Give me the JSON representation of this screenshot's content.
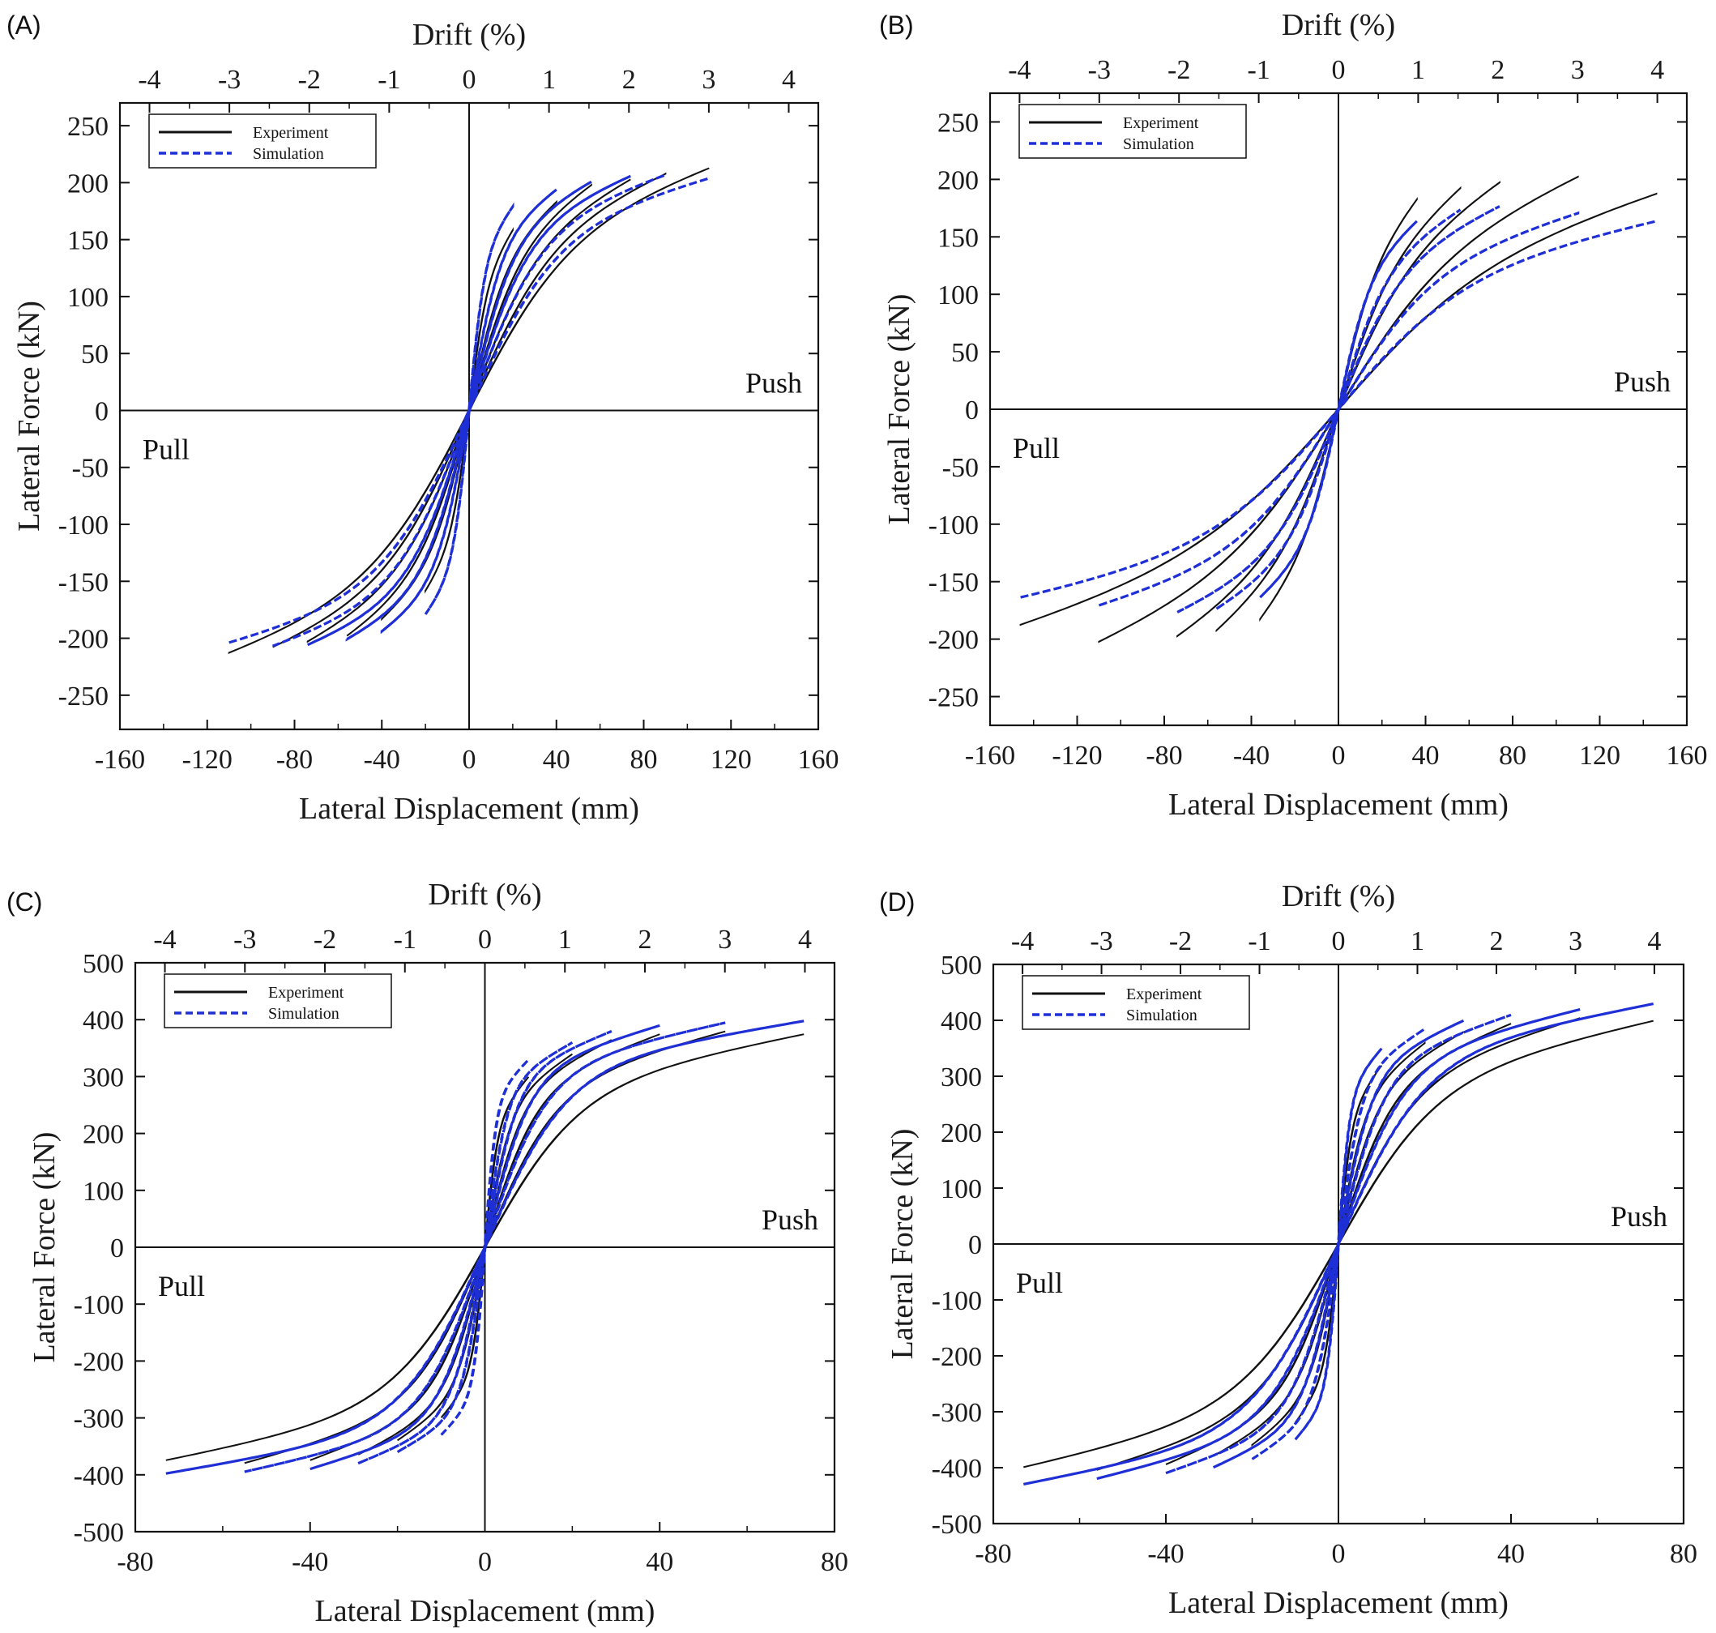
{
  "figure": {
    "panels": [
      {
        "label": "(A)",
        "top_axis_title": "Drift (%)",
        "xlabel": "Lateral Displacement (mm)",
        "ylabel": "Lateral Force (kN)",
        "xticks": [
          "-160",
          "-120",
          "-80",
          "-40",
          "0",
          "40",
          "80",
          "120",
          "160"
        ],
        "yticks": [
          "250",
          "200",
          "150",
          "100",
          "50",
          "0",
          "-50",
          "-100",
          "-150",
          "-200",
          "-250"
        ],
        "drift_ticks": [
          "-4",
          "-3",
          "-2",
          "-1",
          "0",
          "1",
          "2",
          "3",
          "4"
        ],
        "legend": [
          "Experiment",
          "Simulation"
        ],
        "push_label": "Push",
        "pull_label": "Pull"
      },
      {
        "label": "(B)",
        "top_axis_title": "Drift (%)",
        "xlabel": "Lateral Displacement (mm)",
        "ylabel": "Lateral Force (kN)",
        "xticks": [
          "-160",
          "-120",
          "-80",
          "-40",
          "0",
          "40",
          "80",
          "120",
          "160"
        ],
        "yticks": [
          "250",
          "200",
          "150",
          "100",
          "50",
          "0",
          "-50",
          "-100",
          "-150",
          "-200",
          "-250"
        ],
        "drift_ticks": [
          "-4",
          "-3",
          "-2",
          "-1",
          "0",
          "1",
          "2",
          "3",
          "4"
        ],
        "legend": [
          "Experiment",
          "Simulation"
        ],
        "push_label": "Push",
        "pull_label": "Pull"
      },
      {
        "label": "(C)",
        "top_axis_title": "Drift (%)",
        "xlabel": "Lateral Displacement (mm)",
        "ylabel": "Lateral Force (kN)",
        "xticks": [
          "-80",
          "-40",
          "0",
          "40",
          "80"
        ],
        "yticks": [
          "500",
          "400",
          "300",
          "200",
          "100",
          "0",
          "-100",
          "-200",
          "-300",
          "-400",
          "-500"
        ],
        "drift_ticks": [
          "-4",
          "-3",
          "-2",
          "-1",
          "0",
          "1",
          "2",
          "3",
          "4"
        ],
        "legend": [
          "Experiment",
          "Simulation"
        ],
        "push_label": "Push",
        "pull_label": "Pull"
      },
      {
        "label": "(D)",
        "top_axis_title": "Drift (%)",
        "xlabel": "Lateral Displacement (mm)",
        "ylabel": "Lateral Force (kN)",
        "xticks": [
          "-80",
          "-40",
          "0",
          "40",
          "80"
        ],
        "yticks": [
          "500",
          "400",
          "300",
          "200",
          "100",
          "0",
          "-100",
          "-200",
          "-300",
          "-400",
          "-500"
        ],
        "drift_ticks": [
          "-4",
          "-3",
          "-2",
          "-1",
          "0",
          "1",
          "2",
          "3",
          "4"
        ],
        "legend": [
          "Experiment",
          "Simulation"
        ],
        "push_label": "Push",
        "pull_label": "Pull"
      }
    ]
  },
  "chart_data": [
    {
      "panel": "(A)",
      "type": "line",
      "title": "",
      "xlabel": "Lateral Displacement (mm)",
      "ylabel": "Lateral Force (kN)",
      "top_xlabel": "Drift (%)",
      "xlim": [
        -160,
        160
      ],
      "ylim": [
        -280,
        270
      ],
      "drift_lim": [
        -4.37,
        4.37
      ],
      "xticks": [
        -160,
        -120,
        -80,
        -40,
        0,
        40,
        80,
        120,
        160
      ],
      "yticks": [
        -250,
        -200,
        -150,
        -100,
        -50,
        0,
        50,
        100,
        150,
        200,
        250
      ],
      "drift_ticks": [
        -4,
        -3,
        -2,
        -1,
        0,
        1,
        2,
        3,
        4
      ],
      "grid": false,
      "legend_position": "top-left",
      "colors": {
        "experiment": "#111111",
        "simulation": "#1f2fd6"
      },
      "annotations": [
        "Push",
        "Pull"
      ],
      "series": [
        {
          "name": "Experiment",
          "style": "solid",
          "loops": [
            {
              "amplitude": 20,
              "peak_force": 160
            },
            {
              "amplitude": 40,
              "peak_force": 185
            },
            {
              "amplitude": 56,
              "peak_force": 200
            },
            {
              "amplitude": 74,
              "peak_force": 205
            },
            {
              "amplitude": 90,
              "peak_force": 210
            },
            {
              "amplitude": 110,
              "peak_force": 215
            }
          ]
        },
        {
          "name": "Simulation",
          "style": "dashed",
          "loops": [
            {
              "amplitude": 20,
              "peak_force": 180
            },
            {
              "amplitude": 40,
              "peak_force": 195
            },
            {
              "amplitude": 56,
              "peak_force": 202
            },
            {
              "amplitude": 74,
              "peak_force": 207
            },
            {
              "amplitude": 90,
              "peak_force": 208
            },
            {
              "amplitude": 110,
              "peak_force": 205
            }
          ]
        }
      ]
    },
    {
      "panel": "(B)",
      "type": "line",
      "title": "",
      "xlabel": "Lateral Displacement (mm)",
      "ylabel": "Lateral Force (kN)",
      "top_xlabel": "Drift (%)",
      "xlim": [
        -160,
        160
      ],
      "ylim": [
        -275,
        275
      ],
      "drift_lim": [
        -4.37,
        4.37
      ],
      "xticks": [
        -160,
        -120,
        -80,
        -40,
        0,
        40,
        80,
        120,
        160
      ],
      "yticks": [
        -250,
        -200,
        -150,
        -100,
        -50,
        0,
        50,
        100,
        150,
        200,
        250
      ],
      "drift_ticks": [
        -4,
        -3,
        -2,
        -1,
        0,
        1,
        2,
        3,
        4
      ],
      "grid": false,
      "legend_position": "top-left",
      "colors": {
        "experiment": "#111111",
        "simulation": "#1f2fd6"
      },
      "annotations": [
        "Push",
        "Pull"
      ],
      "series": [
        {
          "name": "Experiment",
          "style": "solid",
          "loops": [
            {
              "amplitude": 36,
              "peak_force": 185
            },
            {
              "amplitude": 56,
              "peak_force": 195
            },
            {
              "amplitude": 74,
              "peak_force": 200
            },
            {
              "amplitude": 110,
              "peak_force": 205
            },
            {
              "amplitude": 146,
              "peak_force": 190
            }
          ]
        },
        {
          "name": "Simulation",
          "style": "dashed",
          "loops": [
            {
              "amplitude": 36,
              "peak_force": 165
            },
            {
              "amplitude": 56,
              "peak_force": 175
            },
            {
              "amplitude": 74,
              "peak_force": 178
            },
            {
              "amplitude": 110,
              "peak_force": 172
            },
            {
              "amplitude": 146,
              "peak_force": 165
            }
          ]
        }
      ]
    },
    {
      "panel": "(C)",
      "type": "line",
      "title": "",
      "xlabel": "Lateral Displacement (mm)",
      "ylabel": "Lateral Force (kN)",
      "top_xlabel": "Drift (%)",
      "xlim": [
        -80,
        80
      ],
      "ylim": [
        -500,
        500
      ],
      "drift_lim": [
        -4.37,
        4.37
      ],
      "xticks": [
        -80,
        -40,
        0,
        40,
        80
      ],
      "yticks": [
        -500,
        -400,
        -300,
        -200,
        -100,
        0,
        100,
        200,
        300,
        400,
        500
      ],
      "drift_ticks": [
        -4,
        -3,
        -2,
        -1,
        0,
        1,
        2,
        3,
        4
      ],
      "grid": false,
      "legend_position": "top-left",
      "colors": {
        "experiment": "#111111",
        "simulation": "#1f2fd6"
      },
      "annotations": [
        "Push",
        "Pull"
      ],
      "series": [
        {
          "name": "Experiment",
          "style": "solid",
          "loops": [
            {
              "amplitude": 10,
              "peak_force": 300
            },
            {
              "amplitude": 20,
              "peak_force": 340
            },
            {
              "amplitude": 29,
              "peak_force": 365
            },
            {
              "amplitude": 40,
              "peak_force": 375
            },
            {
              "amplitude": 55,
              "peak_force": 380
            },
            {
              "amplitude": 73,
              "peak_force": 375
            }
          ]
        },
        {
          "name": "Simulation",
          "style": "dashed",
          "loops": [
            {
              "amplitude": 10,
              "peak_force": 330
            },
            {
              "amplitude": 20,
              "peak_force": 360
            },
            {
              "amplitude": 29,
              "peak_force": 380
            },
            {
              "amplitude": 40,
              "peak_force": 390
            },
            {
              "amplitude": 55,
              "peak_force": 395
            },
            {
              "amplitude": 73,
              "peak_force": 398
            }
          ]
        }
      ]
    },
    {
      "panel": "(D)",
      "type": "line",
      "title": "",
      "xlabel": "Lateral Displacement (mm)",
      "ylabel": "Lateral Force (kN)",
      "top_xlabel": "Drift (%)",
      "xlim": [
        -80,
        80
      ],
      "ylim": [
        -500,
        500
      ],
      "drift_lim": [
        -4.37,
        4.37
      ],
      "xticks": [
        -80,
        -40,
        0,
        40,
        80
      ],
      "yticks": [
        -500,
        -400,
        -300,
        -200,
        -100,
        0,
        100,
        200,
        300,
        400,
        500
      ],
      "drift_ticks": [
        -4,
        -3,
        -2,
        -1,
        0,
        1,
        2,
        3,
        4
      ],
      "grid": false,
      "legend_position": "top-left",
      "colors": {
        "experiment": "#111111",
        "simulation": "#1f2fd6"
      },
      "annotations": [
        "Push",
        "Pull"
      ],
      "series": [
        {
          "name": "Experiment",
          "style": "solid",
          "loops": [
            {
              "amplitude": 10,
              "peak_force": 320
            },
            {
              "amplitude": 20,
              "peak_force": 360
            },
            {
              "amplitude": 29,
              "peak_force": 380
            },
            {
              "amplitude": 40,
              "peak_force": 395
            },
            {
              "amplitude": 56,
              "peak_force": 405
            },
            {
              "amplitude": 73,
              "peak_force": 400
            }
          ]
        },
        {
          "name": "Simulation",
          "style": "dashed",
          "loops": [
            {
              "amplitude": 10,
              "peak_force": 350
            },
            {
              "amplitude": 20,
              "peak_force": 385
            },
            {
              "amplitude": 29,
              "peak_force": 400
            },
            {
              "amplitude": 40,
              "peak_force": 410
            },
            {
              "amplitude": 56,
              "peak_force": 420
            },
            {
              "amplitude": 73,
              "peak_force": 430
            }
          ]
        }
      ]
    }
  ]
}
